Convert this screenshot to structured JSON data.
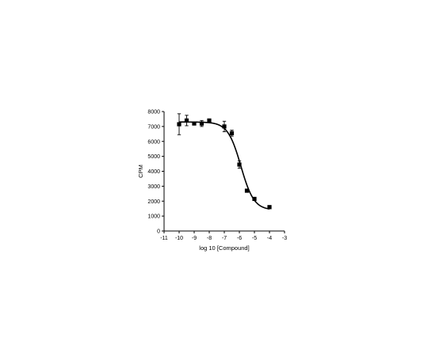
{
  "chart_data": {
    "type": "scatter",
    "title": "",
    "xlabel": "log 10 [Compound]",
    "ylabel": "CPM",
    "xlim": [
      -11,
      -3
    ],
    "ylim": [
      0,
      8000
    ],
    "xticks": [
      -11,
      -10,
      -9,
      -8,
      -7,
      -6,
      -5,
      -4,
      -3
    ],
    "yticks": [
      0,
      1000,
      2000,
      3000,
      4000,
      5000,
      6000,
      7000,
      8000
    ],
    "xtick_labels": [
      "-11",
      "-10",
      "-9",
      "-8",
      "-7",
      "-6",
      "-5",
      "-4",
      "-3"
    ],
    "ytick_labels": [
      "0",
      "1000",
      "2000",
      "3000",
      "4000",
      "5000",
      "6000",
      "7000",
      "8000"
    ],
    "grid": false,
    "legend": "none",
    "points": [
      {
        "x": -10.0,
        "y": 7150,
        "err": 700
      },
      {
        "x": -9.5,
        "y": 7400,
        "err": 350
      },
      {
        "x": -9.0,
        "y": 7200,
        "err": 100
      },
      {
        "x": -8.5,
        "y": 7200,
        "err": 200
      },
      {
        "x": -8.0,
        "y": 7400,
        "err": 100
      },
      {
        "x": -7.0,
        "y": 7000,
        "err": 350
      },
      {
        "x": -6.5,
        "y": 6550,
        "err": 200
      },
      {
        "x": -6.0,
        "y": 4450,
        "err": 250
      },
      {
        "x": -5.5,
        "y": 2700,
        "err": 100
      },
      {
        "x": -5.0,
        "y": 2150,
        "err": 100
      },
      {
        "x": -4.0,
        "y": 1600,
        "err": 100
      }
    ],
    "fit_curve": {
      "model": "sigmoidal dose-response",
      "top": 7300,
      "bottom": 1400,
      "log_ec50": -5.9,
      "hill_slope": -1.0,
      "x_range": [
        -10,
        -4
      ]
    },
    "marker_color": "#000000",
    "line_color": "#000000"
  }
}
